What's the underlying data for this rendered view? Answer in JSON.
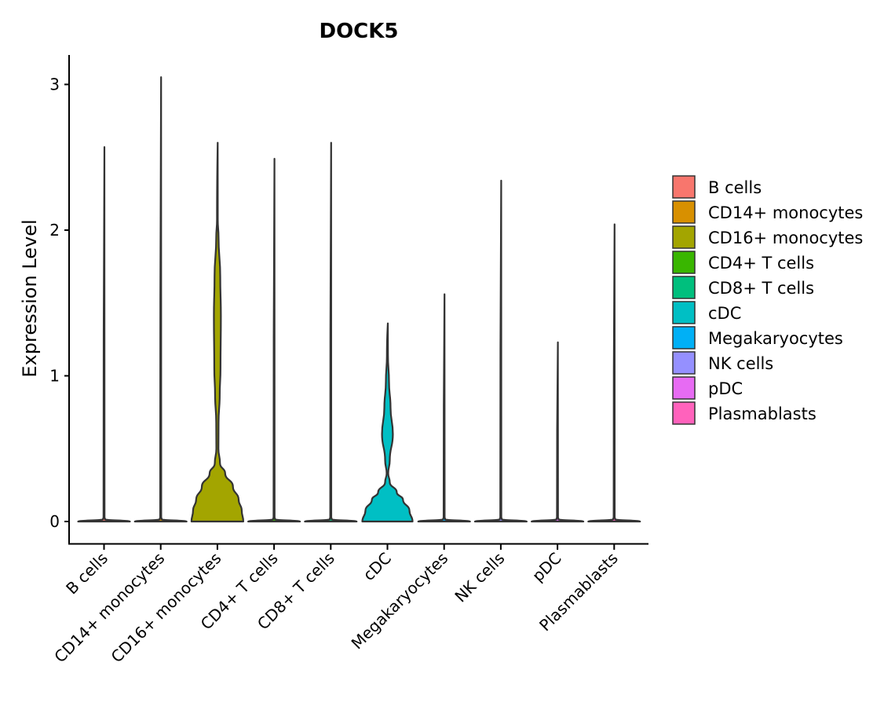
{
  "chart_data": {
    "type": "violin",
    "title": "DOCK5",
    "xlabel": "",
    "ylabel": "Expression Level",
    "ylim": [
      -0.15,
      3.2
    ],
    "yticks": [
      0,
      1,
      2,
      3
    ],
    "grid": false,
    "legend_placement": "right",
    "categories": [
      "B cells",
      "CD14+ monocytes",
      "CD16+ monocytes",
      "CD4+ T cells",
      "CD8+ T cells",
      "cDC",
      "Megakaryocytes",
      "NK cells",
      "pDC",
      "Plasmablasts"
    ],
    "colors": [
      "#F8766D",
      "#D89000",
      "#A3A500",
      "#39B600",
      "#00BF7D",
      "#00BFC4",
      "#00B0F6",
      "#9590FF",
      "#E76BF3",
      "#FF62BC"
    ],
    "max_values": [
      2.57,
      3.05,
      2.6,
      2.49,
      2.6,
      1.36,
      1.56,
      2.34,
      1.23,
      2.04
    ],
    "density_profiles": [
      [
        [
          0,
          1
        ],
        [
          0.015,
          0.04
        ],
        [
          0.03,
          0.02
        ],
        [
          2.57,
          0.015
        ]
      ],
      [
        [
          0,
          1
        ],
        [
          0.015,
          0.04
        ],
        [
          0.03,
          0.02
        ],
        [
          3.05,
          0.015
        ]
      ],
      [
        [
          0,
          1
        ],
        [
          0.075,
          0.94
        ],
        [
          0.15,
          0.82
        ],
        [
          0.24,
          0.6
        ],
        [
          0.33,
          0.3
        ],
        [
          0.4,
          0.1
        ],
        [
          0.5,
          0.04
        ],
        [
          0.68,
          0.045
        ],
        [
          0.87,
          0.09
        ],
        [
          1.05,
          0.12
        ],
        [
          1.41,
          0.135
        ],
        [
          1.68,
          0.11
        ],
        [
          1.95,
          0.045
        ],
        [
          2.07,
          0.015
        ],
        [
          2.6,
          0.012
        ]
      ],
      [
        [
          0,
          1
        ],
        [
          0.015,
          0.04
        ],
        [
          0.03,
          0.02
        ],
        [
          2.49,
          0.015
        ]
      ],
      [
        [
          0,
          1
        ],
        [
          0.015,
          0.04
        ],
        [
          0.03,
          0.02
        ],
        [
          2.6,
          0.015
        ]
      ],
      [
        [
          0,
          0.97
        ],
        [
          0.075,
          0.85
        ],
        [
          0.15,
          0.6
        ],
        [
          0.2,
          0.36
        ],
        [
          0.27,
          0.09
        ],
        [
          0.33,
          0.03
        ],
        [
          0.42,
          0.09
        ],
        [
          0.6,
          0.21
        ],
        [
          0.78,
          0.12
        ],
        [
          0.96,
          0.06
        ],
        [
          1.14,
          0.02
        ],
        [
          1.36,
          0.015
        ]
      ],
      [
        [
          0,
          1
        ],
        [
          0.015,
          0.04
        ],
        [
          0.03,
          0.02
        ],
        [
          1.56,
          0.015
        ]
      ],
      [
        [
          0,
          1
        ],
        [
          0.015,
          0.04
        ],
        [
          0.03,
          0.02
        ],
        [
          2.34,
          0.015
        ]
      ],
      [
        [
          0,
          1
        ],
        [
          0.015,
          0.04
        ],
        [
          0.03,
          0.02
        ],
        [
          1.23,
          0.015
        ]
      ],
      [
        [
          0,
          1
        ],
        [
          0.015,
          0.04
        ],
        [
          0.03,
          0.02
        ],
        [
          2.04,
          0.015
        ]
      ]
    ]
  }
}
